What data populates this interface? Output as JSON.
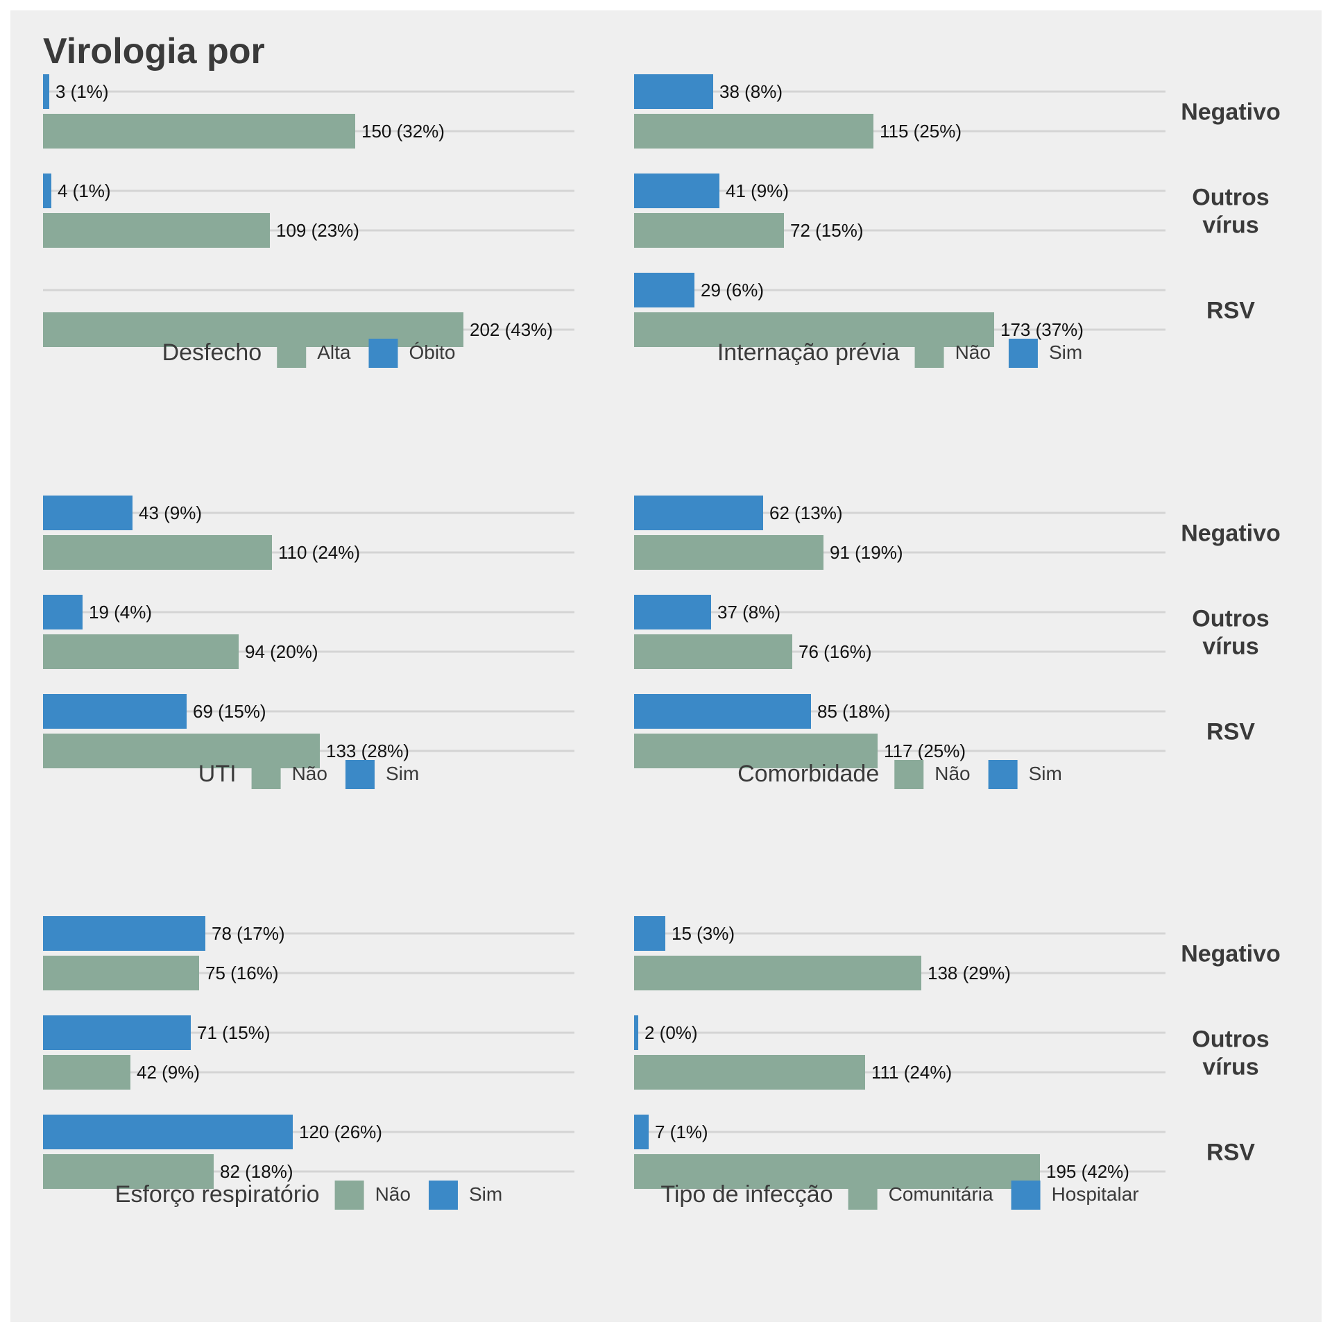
{
  "chart_data": {
    "type": "bar",
    "orientation": "horizontal",
    "title": "Virologia por",
    "groups": [
      "Negativo",
      "Outros vírus",
      "RSV"
    ],
    "group_labels": [
      [
        "Negativo"
      ],
      [
        "Outros",
        "vírus"
      ],
      [
        "RSV"
      ]
    ],
    "grid": "horizontal gridlines only",
    "legend_position": "bottom",
    "colors": {
      "first_category": "#8aaa99",
      "second_category": "#3b89c7",
      "background": "#efefef",
      "gridline": "#d4d4d4"
    },
    "panels": [
      {
        "legend_title": "Desfecho",
        "categories": [
          "Alta",
          "Óbito"
        ],
        "series": [
          {
            "name": "Alta",
            "values": [
              150,
              109,
              202
            ],
            "labels": [
              "150 (32%)",
              "109 (23%)",
              "202 (43%)"
            ]
          },
          {
            "name": "Óbito",
            "values": [
              3,
              4,
              0
            ],
            "labels": [
              "3 (1%)",
              "4 (1%)",
              ""
            ]
          }
        ]
      },
      {
        "legend_title": "Internação prévia",
        "categories": [
          "Não",
          "Sim"
        ],
        "series": [
          {
            "name": "Não",
            "values": [
              115,
              72,
              173
            ],
            "labels": [
              "115 (25%)",
              "72 (15%)",
              "173 (37%)"
            ]
          },
          {
            "name": "Sim",
            "values": [
              38,
              41,
              29
            ],
            "labels": [
              "38 (8%)",
              "41 (9%)",
              "29 (6%)"
            ]
          }
        ]
      },
      {
        "legend_title": "UTI",
        "categories": [
          "Não",
          "Sim"
        ],
        "series": [
          {
            "name": "Não",
            "values": [
              110,
              94,
              133
            ],
            "labels": [
              "110 (24%)",
              "94 (20%)",
              "133 (28%)"
            ]
          },
          {
            "name": "Sim",
            "values": [
              43,
              19,
              69
            ],
            "labels": [
              "43 (9%)",
              "19 (4%)",
              "69 (15%)"
            ]
          }
        ]
      },
      {
        "legend_title": "Comorbidade",
        "categories": [
          "Não",
          "Sim"
        ],
        "series": [
          {
            "name": "Não",
            "values": [
              91,
              76,
              117
            ],
            "labels": [
              "91 (19%)",
              "76 (16%)",
              "117 (25%)"
            ]
          },
          {
            "name": "Sim",
            "values": [
              62,
              37,
              85
            ],
            "labels": [
              "62 (13%)",
              "37 (8%)",
              "85 (18%)"
            ]
          }
        ]
      },
      {
        "legend_title": "Esforço respiratório",
        "categories": [
          "Não",
          "Sim"
        ],
        "series": [
          {
            "name": "Não",
            "values": [
              75,
              42,
              82
            ],
            "labels": [
              "75 (16%)",
              "42 (9%)",
              "82 (18%)"
            ]
          },
          {
            "name": "Sim",
            "values": [
              78,
              71,
              120
            ],
            "labels": [
              "78 (17%)",
              "71 (15%)",
              "120 (26%)"
            ]
          }
        ]
      },
      {
        "legend_title": "Tipo de infecção",
        "categories": [
          "Comunitária",
          "Hospitalar"
        ],
        "series": [
          {
            "name": "Comunitária",
            "values": [
              138,
              111,
              195
            ],
            "labels": [
              "138 (29%)",
              "111 (24%)",
              "195 (42%)"
            ]
          },
          {
            "name": "Hospitalar",
            "values": [
              15,
              2,
              7
            ],
            "labels": [
              "15 (3%)",
              "2 (0%)",
              "7 (1%)"
            ]
          }
        ]
      }
    ]
  }
}
